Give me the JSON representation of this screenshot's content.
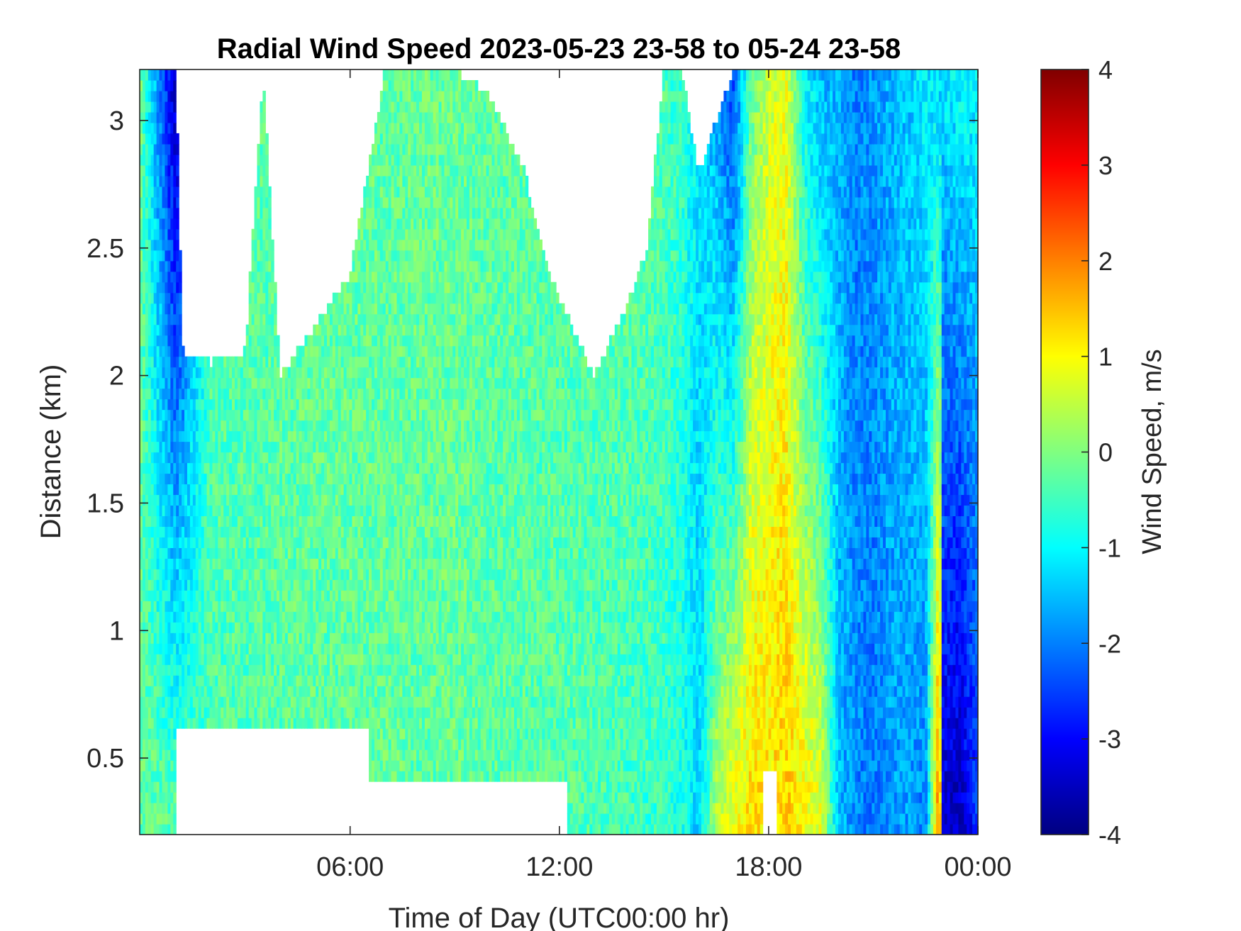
{
  "chart_data": {
    "type": "heatmap",
    "title": "Radial Wind Speed 2023-05-23 23-58 to 05-24 23-58",
    "xlabel": "Time of Day (UTC00:00 hr)",
    "ylabel": "Distance (km)",
    "colorbar_label": "Wind Speed, m/s",
    "x_range_hours": [
      -0.033,
      24.0
    ],
    "y_range_km": [
      0.2,
      3.2
    ],
    "c_range": [
      -4,
      4
    ],
    "colormap": "jet",
    "x_ticks": [
      {
        "value": 6,
        "label": "06:00"
      },
      {
        "value": 12,
        "label": "12:00"
      },
      {
        "value": 18,
        "label": "18:00"
      },
      {
        "value": 24,
        "label": "00:00"
      }
    ],
    "y_ticks": [
      {
        "value": 0.5,
        "label": "0.5"
      },
      {
        "value": 1,
        "label": "1"
      },
      {
        "value": 1.5,
        "label": "1.5"
      },
      {
        "value": 2,
        "label": "2"
      },
      {
        "value": 2.5,
        "label": "2.5"
      },
      {
        "value": 3,
        "label": "3"
      }
    ],
    "c_ticks": [
      {
        "value": 4,
        "label": "4"
      },
      {
        "value": 3,
        "label": "3"
      },
      {
        "value": 2,
        "label": "2"
      },
      {
        "value": 1,
        "label": "1"
      },
      {
        "value": 0,
        "label": "0"
      },
      {
        "value": -1,
        "label": "-1"
      },
      {
        "value": -2,
        "label": "-2"
      },
      {
        "value": -3,
        "label": "-3"
      },
      {
        "value": -4,
        "label": "-4"
      }
    ],
    "time_profile": {
      "hours": [
        0,
        1,
        2,
        3,
        4,
        5,
        6,
        7,
        8,
        9,
        10,
        11,
        12,
        13,
        14,
        15,
        15.5,
        16,
        16.5,
        17,
        17.5,
        18,
        18.5,
        19,
        19.5,
        20,
        20.5,
        21,
        21.5,
        22,
        22.5,
        22.9,
        23,
        23.5,
        24
      ],
      "low_level_speed_ms": [
        -0.2,
        -0.3,
        -0.4,
        -0.4,
        -0.3,
        -0.3,
        -0.3,
        -0.2,
        -0.3,
        -0.2,
        -0.3,
        -0.3,
        -0.3,
        -0.4,
        -0.5,
        -0.6,
        -0.8,
        -1.4,
        0.4,
        1.0,
        1.3,
        1.2,
        1.4,
        1.1,
        0.8,
        -1.5,
        -1.9,
        -2.1,
        -1.8,
        -1.8,
        -2.0,
        2.5,
        -3.4,
        -3.6,
        -2.6
      ],
      "upper_level_speed_ms": [
        -0.2,
        -3.6,
        -0.4,
        -0.3,
        -0.3,
        -0.2,
        -0.2,
        -0.3,
        -0.2,
        -0.2,
        -0.3,
        -0.3,
        -0.4,
        -0.3,
        -0.2,
        -0.4,
        -0.6,
        -1.2,
        -1.8,
        -2.6,
        -0.2,
        0.6,
        0.8,
        -1.0,
        -1.6,
        -1.6,
        -2.0,
        -1.8,
        -1.6,
        -1.4,
        -1.1,
        -1.4,
        -1.2,
        -1.0,
        -1.0
      ]
    },
    "valid_data_top_km": {
      "hours": [
        0,
        1,
        1.2,
        2,
        3,
        3.5,
        4,
        5,
        6,
        7,
        8,
        9,
        10,
        11,
        11.5,
        12,
        13,
        14,
        14.5,
        15,
        15.5,
        16,
        17,
        18,
        19,
        20,
        21,
        22,
        23,
        24
      ],
      "top_km": [
        3.2,
        3.2,
        2.1,
        2.05,
        2.1,
        3.2,
        2.0,
        2.2,
        2.4,
        3.2,
        3.2,
        3.2,
        3.1,
        2.8,
        2.5,
        2.3,
        2.0,
        2.3,
        2.5,
        3.2,
        3.2,
        2.8,
        3.2,
        3.2,
        3.2,
        3.2,
        3.2,
        3.2,
        3.2,
        3.2
      ]
    },
    "data_gaps": [
      {
        "hours": [
          1.0,
          6.5
        ],
        "km": [
          0.2,
          0.62
        ],
        "note": "low-level gap under inversion layer"
      },
      {
        "hours": [
          6.5,
          12.2
        ],
        "km": [
          0.2,
          0.4
        ],
        "note": "low-level gap"
      },
      {
        "hours": [
          17.8,
          18.2
        ],
        "km": [
          0.2,
          0.45
        ],
        "note": "gap near surface"
      }
    ]
  }
}
